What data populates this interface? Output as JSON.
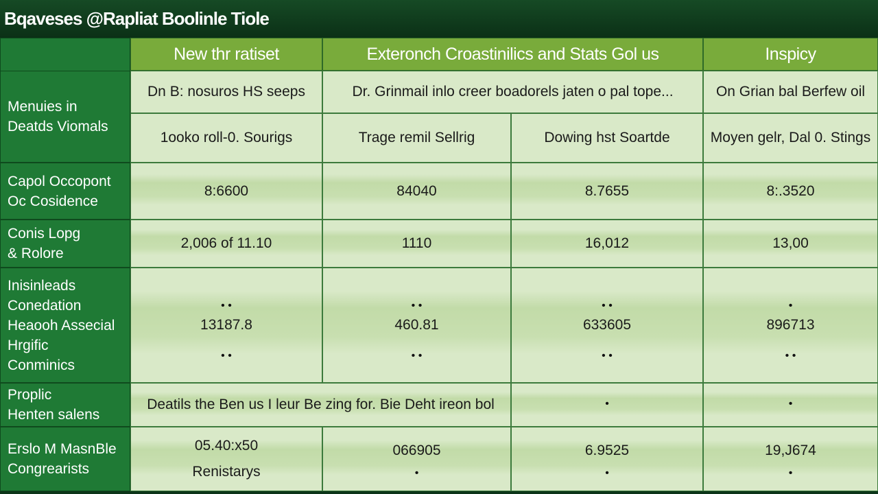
{
  "title": "Bqaveses @Rapliat Boolinle Tiole",
  "table": {
    "header": [
      "New thr ratiset",
      "Exteronch Croastinilics and Stats Gol us",
      "Inspicy"
    ],
    "subheader": {
      "label": [
        "Menuies in",
        "Deatds Viomals"
      ],
      "rows": [
        [
          "Dn B: nosuros HS seeps",
          "Dr. Grinmail inlo creer boadorels jaten o pal tope...",
          "On Grian bal Berfew oil"
        ],
        [
          "1ooko roll-0. Sourigs",
          "Trage remil Sellrig",
          "Dowing hst Soartde",
          "Moyen gelr, Dal 0. Stings"
        ]
      ]
    },
    "rows": [
      {
        "label": [
          "Capol Occopont",
          "Oc Cosidence"
        ],
        "cells": [
          "8:6600",
          "84040",
          "8.7655",
          "8:.3520"
        ]
      },
      {
        "label": [
          "Conis  Lopg",
          "& Rolore"
        ],
        "cells": [
          "2,006 of 11.10",
          "1110",
          "16,012",
          "13,00"
        ]
      },
      {
        "label": [
          "Inisinleads",
          "Conedation",
          "Heaooh Assecial",
          "Hrgific",
          "Conminics"
        ],
        "cells": [
          "13187.8",
          "460.81",
          "633605",
          "896713"
        ]
      },
      {
        "label": [
          "Proplic",
          "Henten salens"
        ],
        "cells": [
          "Deatils the Ben us I leur Be zing for. Bie Deht ireon bol"
        ]
      },
      {
        "label": [
          "Erslo M MasnBle",
          "Congrearists"
        ],
        "cells": [
          "05.40:x50",
          "066905",
          "6.9525",
          "19,J674"
        ],
        "note": "Renistarys"
      }
    ]
  }
}
